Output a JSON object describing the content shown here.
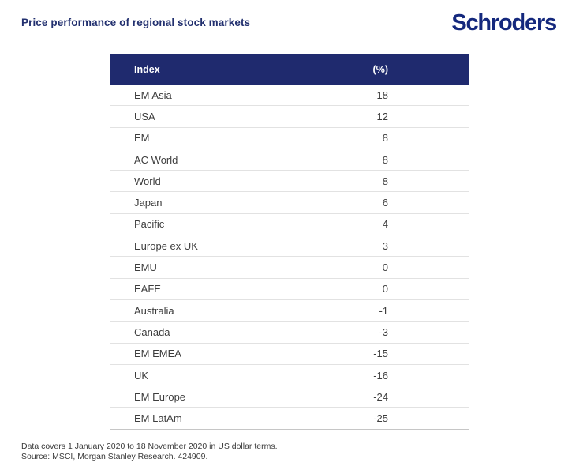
{
  "page": {
    "title": "Price performance of regional stock markets",
    "logo_text": "Schroders"
  },
  "table": {
    "columns": [
      {
        "label": "Index"
      },
      {
        "label": "(%)"
      }
    ],
    "rows": [
      {
        "index": "EM Asia",
        "value": "18"
      },
      {
        "index": "USA",
        "value": "12"
      },
      {
        "index": "EM",
        "value": "8"
      },
      {
        "index": "AC World",
        "value": "8"
      },
      {
        "index": "World",
        "value": "8"
      },
      {
        "index": "Japan",
        "value": "6"
      },
      {
        "index": "Pacific",
        "value": "4"
      },
      {
        "index": "Europe ex UK",
        "value": "3"
      },
      {
        "index": "EMU",
        "value": "0"
      },
      {
        "index": "EAFE",
        "value": "0"
      },
      {
        "index": "Australia",
        "value": "-1"
      },
      {
        "index": "Canada",
        "value": "-3"
      },
      {
        "index": "EM EMEA",
        "value": "-15"
      },
      {
        "index": "UK",
        "value": "-16"
      },
      {
        "index": "EM Europe",
        "value": "-24"
      },
      {
        "index": "EM LatAm",
        "value": "-25"
      }
    ]
  },
  "footer": {
    "line1": "Data covers 1 January 2020 to 18 November 2020 in US dollar terms.",
    "line2": "Source: MSCI, Morgan Stanley Research. 424909."
  },
  "colors": {
    "header_navy": "#1f2a6e",
    "title_navy": "#22306f",
    "logo_navy": "#14287d",
    "row_text": "#3d3d3d",
    "separator": "#e2e2e2"
  },
  "chart_data": {
    "type": "table",
    "title": "Price performance of regional stock markets",
    "columns": [
      "Index",
      "(%)"
    ],
    "rows": [
      [
        "EM Asia",
        18
      ],
      [
        "USA",
        12
      ],
      [
        "EM",
        8
      ],
      [
        "AC World",
        8
      ],
      [
        "World",
        8
      ],
      [
        "Japan",
        6
      ],
      [
        "Pacific",
        4
      ],
      [
        "Europe ex UK",
        3
      ],
      [
        "EMU",
        0
      ],
      [
        "EAFE",
        0
      ],
      [
        "Australia",
        -1
      ],
      [
        "Canada",
        -3
      ],
      [
        "EM EMEA",
        -15
      ],
      [
        "UK",
        -16
      ],
      [
        "EM Europe",
        -24
      ],
      [
        "EM LatAm",
        -25
      ]
    ],
    "note": "Data covers 1 January 2020 to 18 November 2020 in US dollar terms.",
    "source": "Source: MSCI, Morgan Stanley Research. 424909."
  }
}
